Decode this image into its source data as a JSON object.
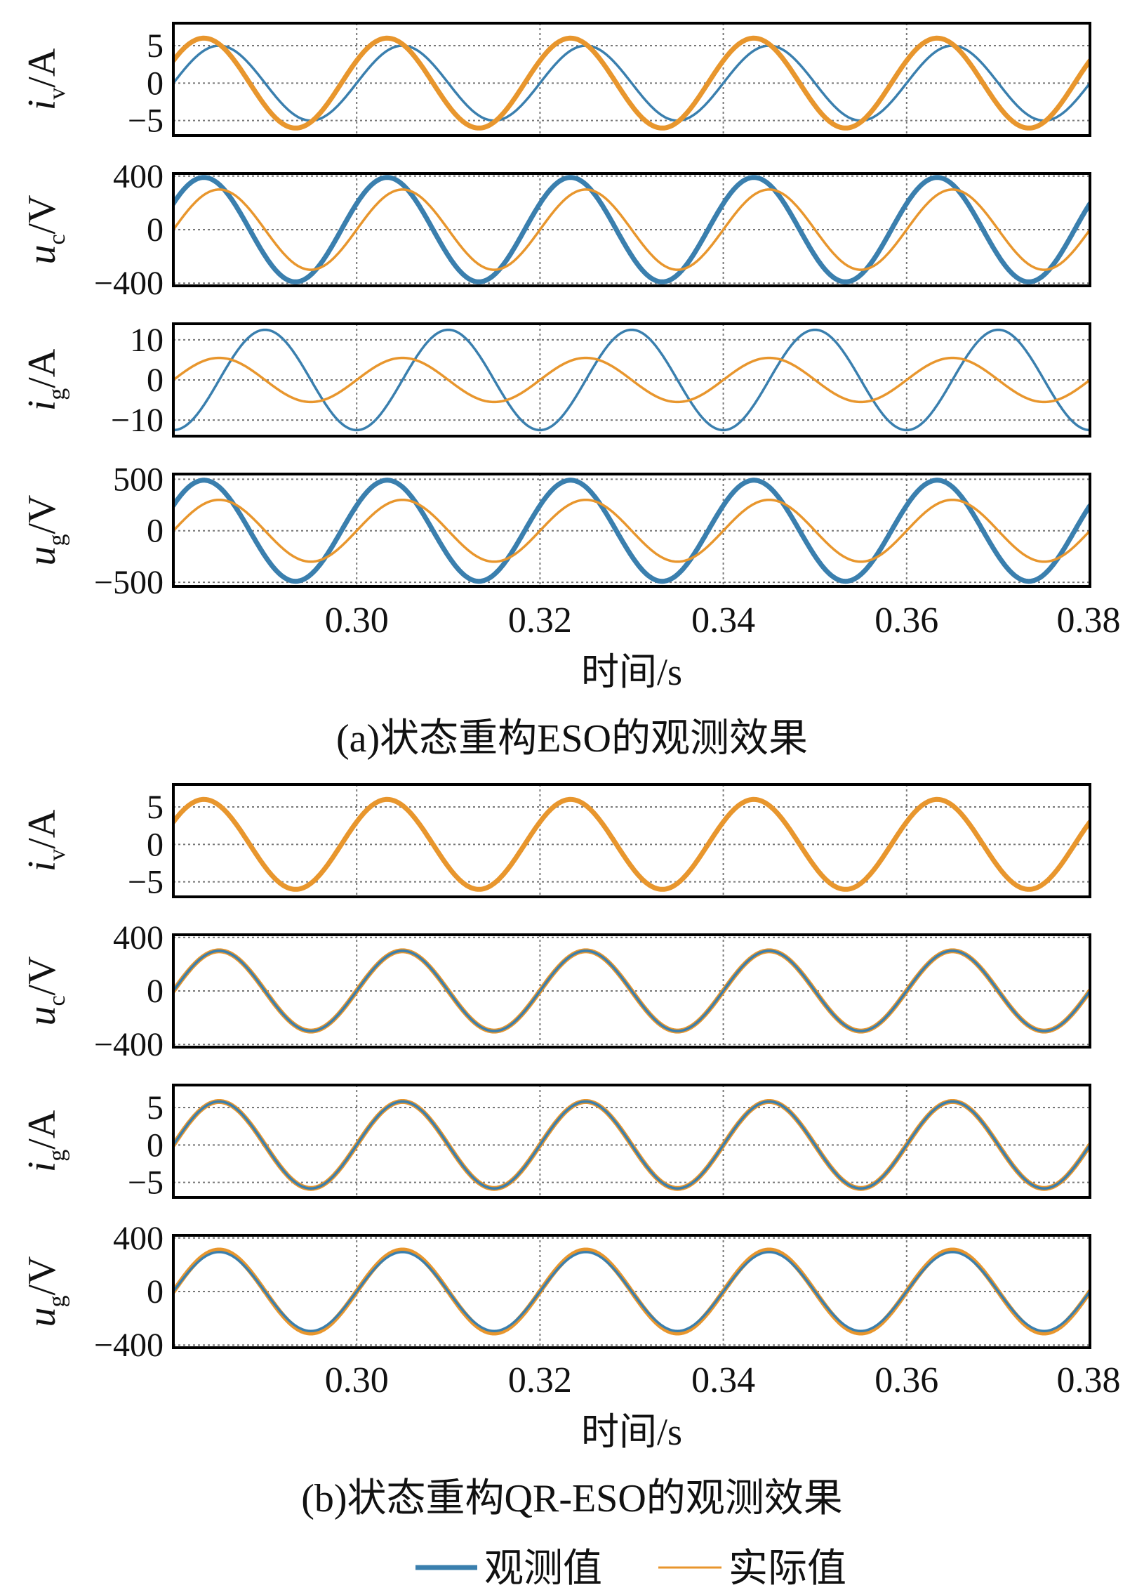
{
  "colors": {
    "observed": "#3A7FAE",
    "actual": "#E8962D",
    "grid": "#777777",
    "axis": "#000000"
  },
  "legend": {
    "observed": "观测值",
    "actual": "实际值"
  },
  "chart_data": [
    {
      "type": "line",
      "group": "a",
      "caption": "(a)状态重构ESO的观测效果",
      "xlabel": "时间/s",
      "xlim": [
        0.28,
        0.38
      ],
      "xticks": [
        "0.30",
        "0.32",
        "0.34",
        "0.36",
        "0.38"
      ],
      "panels": [
        {
          "ylabel": {
            "symbol": "i",
            "subscript": "v",
            "unit": "/A"
          },
          "ylim": [
            -7,
            8
          ],
          "yticks": [
            5,
            0,
            -5
          ],
          "ytick_labels": [
            "5",
            "0",
            "−5"
          ],
          "series": [
            {
              "name": "观测值",
              "amplitude": 5.0,
              "phase_deg": 0,
              "width": "thin"
            },
            {
              "name": "实际值",
              "amplitude": 6.0,
              "phase_deg": 30,
              "width": "thick"
            }
          ]
        },
        {
          "ylabel": {
            "symbol": "u",
            "subscript": "c",
            "unit": "/V"
          },
          "ylim": [
            -420,
            420
          ],
          "yticks": [
            400,
            0,
            -400
          ],
          "ytick_labels": [
            "400",
            "0",
            "−400"
          ],
          "series": [
            {
              "name": "观测值",
              "amplitude": 390,
              "phase_deg": 30,
              "width": "thick"
            },
            {
              "name": "实际值",
              "amplitude": 300,
              "phase_deg": 0,
              "width": "thin"
            }
          ]
        },
        {
          "ylabel": {
            "symbol": "i",
            "subscript": "g",
            "unit": "/A"
          },
          "ylim": [
            -14,
            14
          ],
          "yticks": [
            10,
            0,
            -10
          ],
          "ytick_labels": [
            "10",
            "0",
            "−10"
          ],
          "series": [
            {
              "name": "观测值",
              "amplitude": 12.5,
              "phase_deg": -90,
              "width": "thin"
            },
            {
              "name": "实际值",
              "amplitude": 5.5,
              "phase_deg": 0,
              "width": "thin"
            }
          ]
        },
        {
          "ylabel": {
            "symbol": "u",
            "subscript": "g",
            "unit": "/V"
          },
          "ylim": [
            -540,
            550
          ],
          "yticks": [
            500,
            0,
            -500
          ],
          "ytick_labels": [
            "500",
            "0",
            "−500"
          ],
          "series": [
            {
              "name": "观测值",
              "amplitude": 490,
              "phase_deg": 30,
              "width": "thick"
            },
            {
              "name": "实际值",
              "amplitude": 300,
              "phase_deg": 0,
              "width": "thin"
            }
          ]
        }
      ]
    },
    {
      "type": "line",
      "group": "b",
      "caption": "(b)状态重构QR-ESO的观测效果",
      "xlabel": "时间/s",
      "xlim": [
        0.28,
        0.38
      ],
      "xticks": [
        "0.30",
        "0.32",
        "0.34",
        "0.36",
        "0.38"
      ],
      "panels": [
        {
          "ylabel": {
            "symbol": "i",
            "subscript": "v",
            "unit": "/A"
          },
          "ylim": [
            -7,
            8
          ],
          "yticks": [
            5,
            0,
            -5
          ],
          "ytick_labels": [
            "5",
            "0",
            "−5"
          ],
          "series": [
            {
              "name": "观测值",
              "amplitude": 6.0,
              "phase_deg": 30,
              "width": "thin"
            },
            {
              "name": "实际值",
              "amplitude": 6.0,
              "phase_deg": 30,
              "width": "thick"
            }
          ]
        },
        {
          "ylabel": {
            "symbol": "u",
            "subscript": "c",
            "unit": "/V"
          },
          "ylim": [
            -420,
            420
          ],
          "yticks": [
            400,
            0,
            -400
          ],
          "ytick_labels": [
            "400",
            "0",
            "−400"
          ],
          "series": [
            {
              "name": "实际值",
              "amplitude": 300,
              "phase_deg": 0,
              "width": "thick"
            },
            {
              "name": "观测值",
              "amplitude": 300,
              "phase_deg": 0,
              "width": "thin"
            }
          ]
        },
        {
          "ylabel": {
            "symbol": "i",
            "subscript": "g",
            "unit": "/A"
          },
          "ylim": [
            -7,
            8
          ],
          "yticks": [
            5,
            0,
            -5
          ],
          "ytick_labels": [
            "5",
            "0",
            "−5"
          ],
          "series": [
            {
              "name": "实际值",
              "amplitude": 5.8,
              "phase_deg": 0,
              "width": "thick"
            },
            {
              "name": "观测值",
              "amplitude": 5.8,
              "phase_deg": 0,
              "width": "thin"
            }
          ]
        },
        {
          "ylabel": {
            "symbol": "u",
            "subscript": "g",
            "unit": "/V"
          },
          "ylim": [
            -420,
            420
          ],
          "yticks": [
            400,
            0,
            -400
          ],
          "ytick_labels": [
            "400",
            "0",
            "−400"
          ],
          "series": [
            {
              "name": "实际值",
              "amplitude": 310,
              "phase_deg": 0,
              "width": "thick"
            },
            {
              "name": "观测值",
              "amplitude": 295,
              "phase_deg": 0,
              "width": "thin"
            }
          ]
        }
      ]
    }
  ]
}
